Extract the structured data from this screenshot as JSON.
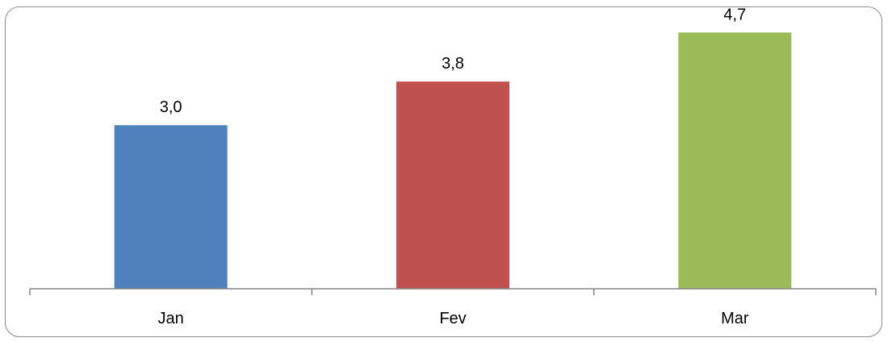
{
  "chart_data": {
    "type": "bar",
    "categories": [
      "Jan",
      "Fev",
      "Mar"
    ],
    "values": [
      3.0,
      3.8,
      4.7
    ],
    "data_labels": [
      "3,0",
      "3,8",
      "4,7"
    ],
    "colors": [
      "#4f81bd",
      "#c0504d",
      "#9bbb59"
    ],
    "title": "",
    "xlabel": "",
    "ylabel": "",
    "ylim": [
      0,
      5.0
    ],
    "grid": false,
    "legend": "none"
  }
}
